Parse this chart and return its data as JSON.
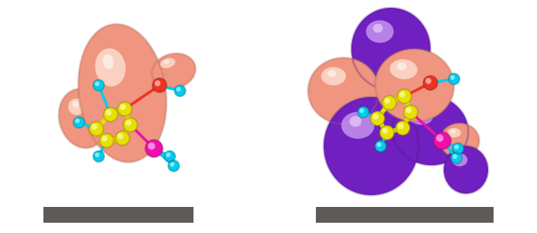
{
  "background_color": "#ffffff",
  "fig_width": 6.8,
  "fig_height": 2.95,
  "dpi": 100,
  "caption_bar_color": "#5f5a55",
  "salmon_color": "#F0957F",
  "salmon_light": "#F8C4B4",
  "purple_color": "#7020C0",
  "purple_light": "#A060E0",
  "yellow_color": "#E8E000",
  "cyan_color": "#00CCEE",
  "red_color": "#EE3322",
  "magenta_color": "#EE10AA"
}
